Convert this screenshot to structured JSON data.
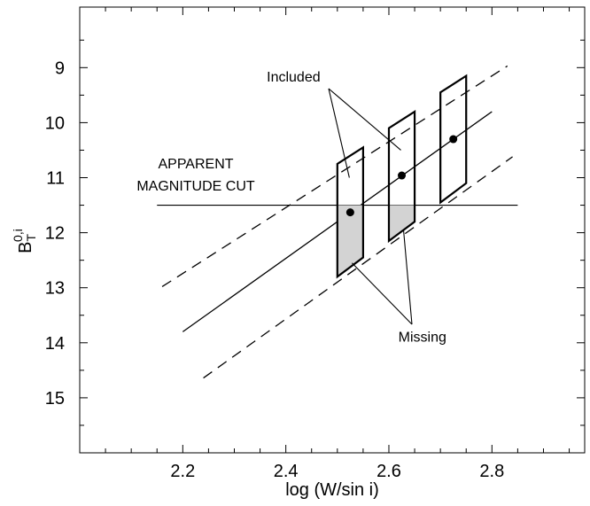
{
  "chart_data": {
    "type": "line",
    "title": "",
    "xlabel": "log (W/sin i)",
    "ylabel_main": "B",
    "ylabel_sub": "T",
    "ylabel_sup": "0,i",
    "xlim": [
      2.0,
      2.98
    ],
    "ylim": [
      16.0,
      7.9
    ],
    "y_inverted": true,
    "grid": false,
    "x_ticks": [
      "2.2",
      "2.4",
      "2.6",
      "2.8"
    ],
    "x_tick_values": [
      2.2,
      2.4,
      2.6,
      2.8
    ],
    "x_minor_ticks": [
      2.05,
      2.1,
      2.15,
      2.25,
      2.3,
      2.35,
      2.45,
      2.5,
      2.55,
      2.65,
      2.7,
      2.75,
      2.85,
      2.9,
      2.95
    ],
    "y_ticks": [
      "9",
      "10",
      "11",
      "12",
      "13",
      "14",
      "15"
    ],
    "y_tick_values": [
      9,
      10,
      11,
      12,
      13,
      14,
      15
    ],
    "y_minor_ticks": [
      8.5,
      9.5,
      10.5,
      11.5,
      12.5,
      13.5,
      14.5,
      15.5
    ],
    "relation_line": {
      "x": [
        2.2,
        2.8
      ],
      "y": [
        13.8,
        9.8
      ]
    },
    "scatter_band_upper": {
      "x": [
        2.16,
        2.83
      ],
      "y": [
        12.98,
        8.97
      ]
    },
    "scatter_band_lower": {
      "x": [
        2.24,
        2.84
      ],
      "y": [
        14.64,
        10.62
      ]
    },
    "magnitude_cut": {
      "x": [
        2.15,
        2.85
      ],
      "y": 11.5,
      "label_lines": [
        "APPARENT",
        "MAGNITUDE CUT"
      ]
    },
    "boxes": [
      {
        "x_left": 2.5,
        "x_right": 2.55,
        "y_bottom_left": 12.8,
        "y_bottom_right": 12.45,
        "y_top_left": 10.75,
        "y_top_right": 10.45
      },
      {
        "x_left": 2.6,
        "x_right": 2.65,
        "y_bottom_left": 12.15,
        "y_bottom_right": 11.8,
        "y_top_left": 10.1,
        "y_top_right": 9.8
      },
      {
        "x_left": 2.7,
        "x_right": 2.75,
        "y_bottom_left": 11.45,
        "y_bottom_right": 11.1,
        "y_top_left": 9.45,
        "y_top_right": 9.15
      }
    ],
    "points": [
      {
        "x": 2.525,
        "y": 11.63
      },
      {
        "x": 2.625,
        "y": 10.96
      },
      {
        "x": 2.725,
        "y": 10.3
      }
    ],
    "annotations": {
      "included": {
        "text": "Included",
        "x": 2.415,
        "y": 9.25,
        "arrows_to": [
          {
            "x": 2.525,
            "y": 11.0
          },
          {
            "x": 2.625,
            "y": 10.5
          }
        ]
      },
      "missing": {
        "text": "Missing",
        "x": 2.665,
        "y": 13.98,
        "arrows_to": [
          {
            "x": 2.525,
            "y": 12.55
          },
          {
            "x": 2.625,
            "y": 11.95
          }
        ]
      }
    },
    "colors": {
      "missing_fill": "#d3d3d3",
      "line": "#000000"
    }
  }
}
